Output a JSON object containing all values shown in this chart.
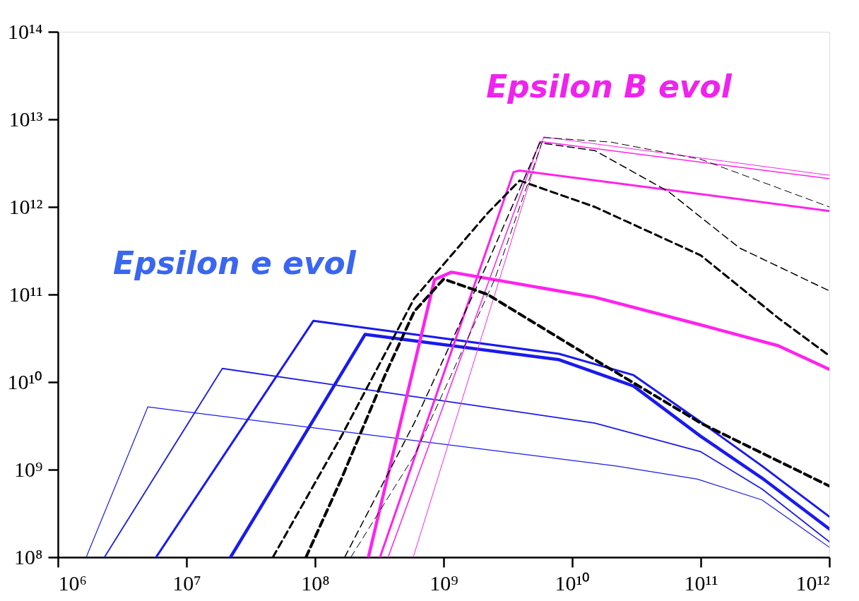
{
  "chart_data": {
    "type": "line",
    "log": "xy",
    "grid": false,
    "marker": "none",
    "xlim": [
      1000000.0,
      1000000000000.0
    ],
    "ylim": [
      100000000.0,
      100000000000000.0
    ],
    "xticks": [
      {
        "value": 1000000.0,
        "label": "10⁶"
      },
      {
        "value": 10000000.0,
        "label": "10⁷"
      },
      {
        "value": 100000000.0,
        "label": "10⁸"
      },
      {
        "value": 1000000000.0,
        "label": "10⁹"
      },
      {
        "value": 10000000000.0,
        "label": "10¹⁰"
      },
      {
        "value": 100000000000.0,
        "label": "10¹¹"
      },
      {
        "value": 1000000000000.0,
        "label": "10¹²"
      }
    ],
    "yticks": [
      {
        "value": 100000000.0,
        "label": "10⁸"
      },
      {
        "value": 1000000000.0,
        "label": "10⁹"
      },
      {
        "value": 10000000000.0,
        "label": "10¹⁰"
      },
      {
        "value": 100000000000.0,
        "label": "10¹¹"
      },
      {
        "value": 1000000000000.0,
        "label": "10¹²"
      },
      {
        "value": 10000000000000.0,
        "label": "10¹³"
      },
      {
        "value": 100000000000000.0,
        "label": "10¹⁴"
      }
    ],
    "annotations": [
      "Epsilon e evol",
      "Epsilon B evol"
    ],
    "series": [
      {
        "color": "#1a1aee",
        "line_style": "solid",
        "x": [
          1660000.0,
          5000000.0,
          22000000000.0,
          94000000000.0,
          300000000000.0,
          1000000000000.0
        ],
        "values": [
          100000000.0,
          5200000000.0,
          1100000000.0,
          780000000.0,
          450000000.0,
          130000000.0
        ]
      },
      {
        "color": "#1a1aee",
        "line_style": "solid",
        "x": [
          2300000.0,
          19000000.0,
          15000000000.0,
          100000000000.0,
          300000000000.0,
          1000000000000.0
        ],
        "values": [
          100000000.0,
          14300000000.0,
          3400000000.0,
          1600000000.0,
          600000000.0,
          150000000.0
        ]
      },
      {
        "color": "#1a1aee",
        "line_style": "solid",
        "x": [
          5800000.0,
          97000000.0,
          7900000000.0,
          30000000000.0,
          100000000000.0,
          300000000000.0,
          1000000000000.0
        ],
        "values": [
          100000000.0,
          50000000000.0,
          21000000000.0,
          12000000000.0,
          3500000000.0,
          1100000000.0,
          290000000.0
        ]
      },
      {
        "color": "#1a1aee",
        "line_style": "solid",
        "x": [
          22000000.0,
          245000000.0,
          7900000000.0,
          30000000000.0,
          100000000000.0,
          300000000000.0,
          1000000000000.0
        ],
        "values": [
          100000000.0,
          35000000000.0,
          18000000000.0,
          9000000000.0,
          2400000000.0,
          800000000.0,
          210000000.0
        ]
      },
      {
        "color": "#ff22ee",
        "line_style": "solid",
        "x": [
          260000000.0,
          850000000.0,
          1150000000.0,
          15000000000.0,
          100000000000.0,
          400000000000.0,
          1000000000000.0
        ],
        "values": [
          100000000.0,
          148000000000.0,
          180000000000.0,
          93000000000.0,
          45000000000.0,
          26000000000.0,
          14000000000.0
        ]
      },
      {
        "color": "#ff22ee",
        "line_style": "solid",
        "x": [
          320000000.0,
          3500000000.0,
          3900000000.0,
          1000000000000.0
        ],
        "values": [
          100000000.0,
          2500000000000.0,
          2600000000000.0,
          900000000000.0
        ]
      },
      {
        "color": "#ff22ee",
        "line_style": "solid",
        "x": [
          370000000.0,
          5600000000.0,
          1000000000000.0
        ],
        "values": [
          100000000.0,
          5600000000000.0,
          2100000000000.0
        ]
      },
      {
        "color": "#ff22ee",
        "line_style": "solid",
        "x": [
          580000000.0,
          6000000000.0,
          1000000000000.0
        ],
        "values": [
          100000000.0,
          6300000000000.0,
          2300000000000.0
        ]
      },
      {
        "color": "#000000",
        "line_style": "dashed",
        "x": [
          85000000.0,
          160000000.0,
          350000000.0,
          590000000.0,
          1000000000.0,
          2200000000.0,
          15000000000.0,
          100000000000.0,
          1000000000000.0
        ],
        "values": [
          100000000.0,
          780000000.0,
          12000000000.0,
          64000000000.0,
          150000000000.0,
          100000000000.0,
          18000000000.0,
          3400000000.0,
          650000000.0
        ]
      },
      {
        "color": "#000000",
        "line_style": "dashed",
        "x": [
          47000000.0,
          160000000.0,
          590000000.0,
          2200000000.0,
          3900000000.0,
          15000000000.0,
          100000000000.0,
          400000000000.0,
          1000000000000.0
        ],
        "values": [
          100000000.0,
          2400000000.0,
          90000000000.0,
          850000000000.0,
          2000000000000.0,
          1000000000000.0,
          280000000000.0,
          54000000000.0,
          20000000000.0
        ]
      },
      {
        "color": "#000000",
        "line_style": "dashed",
        "x": [
          170000000.0,
          590000000.0,
          2200000000.0,
          5600000000.0,
          15000000000.0,
          56000000000.0,
          200000000000.0,
          1000000000000.0
        ],
        "values": [
          100000000.0,
          3400000000.0,
          230000000000.0,
          5400000000000.0,
          4400000000000.0,
          1500000000000.0,
          340000000000.0,
          110000000000.0
        ]
      },
      {
        "color": "#000000",
        "line_style": "dashed",
        "x": [
          190000000.0,
          600000000.0,
          2500000000.0,
          6000000000.0,
          20000000000.0,
          100000000000.0,
          1000000000000.0
        ],
        "values": [
          100000000.0,
          1500000000.0,
          150000000000.0,
          6200000000000.0,
          5500000000000.0,
          3500000000000.0,
          1000000000000.0
        ]
      }
    ]
  }
}
